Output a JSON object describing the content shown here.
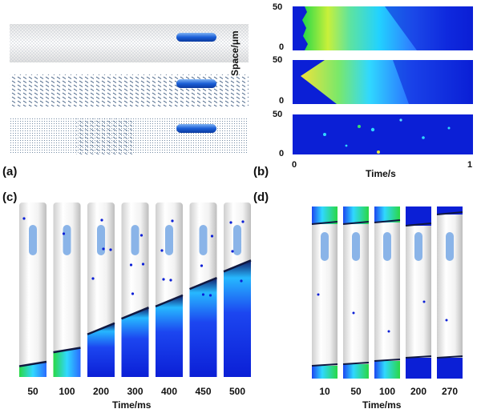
{
  "panels": {
    "a": {
      "label": "(a)"
    },
    "b": {
      "label": "(b)",
      "y_axis_label": "Space/μm",
      "x_axis_label": "Time/s",
      "x_ticks": [
        "0",
        "1"
      ],
      "y_ticks": [
        "50",
        "0"
      ]
    },
    "c": {
      "label": "(c)",
      "axis_label": "Time/ms",
      "times": [
        "50",
        "100",
        "200",
        "300",
        "400",
        "450",
        "500"
      ],
      "fill_fraction": [
        0.08,
        0.16,
        0.29,
        0.38,
        0.45,
        0.55,
        0.65
      ]
    },
    "d": {
      "label": "(d)",
      "axis_label": "Time/ms",
      "times": [
        "10",
        "50",
        "100",
        "200",
        "270"
      ]
    }
  },
  "colors": {
    "deep_blue": "#0b1fd6",
    "cyan": "#22e6ff",
    "green": "#35e24a",
    "yellow": "#e8e838",
    "tube_light": "#f2f2f2",
    "tube_shade": "#c8c8c8",
    "organelle": "#8ab4e8"
  }
}
